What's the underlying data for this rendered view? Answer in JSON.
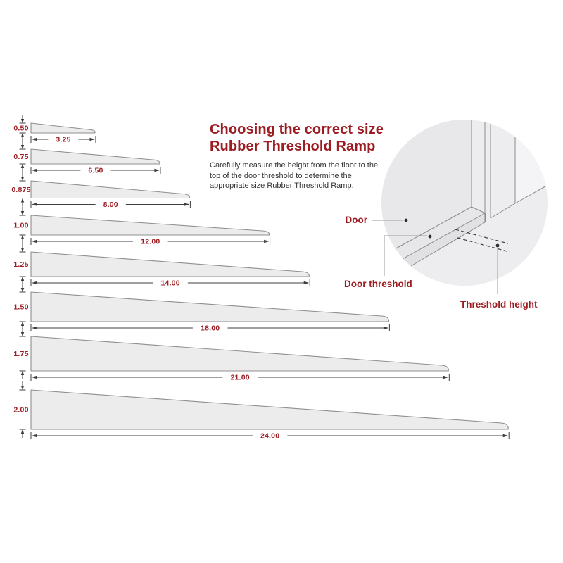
{
  "title": {
    "line1": "Choosing the correct size",
    "line2": "Rubber Threshold Ramp"
  },
  "description": {
    "line1": "Carefully measure the height from the floor to the",
    "line2": "top of the door threshold to determine the",
    "line3": "appropriate size Rubber Threshold Ramp."
  },
  "ramps": [
    {
      "height_label": "0.50",
      "width_label": "3.25",
      "height_in": 0.5,
      "width_in": 3.25
    },
    {
      "height_label": "0.75",
      "width_label": "6.50",
      "height_in": 0.75,
      "width_in": 6.5
    },
    {
      "height_label": "0.875",
      "width_label": "8.00",
      "height_in": 0.875,
      "width_in": 8.0
    },
    {
      "height_label": "1.00",
      "width_label": "12.00",
      "height_in": 1.0,
      "width_in": 12.0
    },
    {
      "height_label": "1.25",
      "width_label": "14.00",
      "height_in": 1.25,
      "width_in": 14.0
    },
    {
      "height_label": "1.50",
      "width_label": "18.00",
      "height_in": 1.5,
      "width_in": 18.0
    },
    {
      "height_label": "1.75",
      "width_label": "21.00",
      "height_in": 1.75,
      "width_in": 21.0
    },
    {
      "height_label": "2.00",
      "width_label": "24.00",
      "height_in": 2.0,
      "width_in": 24.0
    }
  ],
  "door_diagram": {
    "door_label": "Door",
    "door_threshold_label": "Door threshold",
    "threshold_height_label": "Threshold height"
  },
  "colors": {
    "accent": "#9c1c21",
    "ramp_fill": "#ececec",
    "ramp_stroke": "#8f8f8f",
    "dimension_line": "#3f3f3f",
    "circle_fill": "#ededef",
    "diagram_line": "#8a8a8a",
    "body_text": "#333333"
  }
}
